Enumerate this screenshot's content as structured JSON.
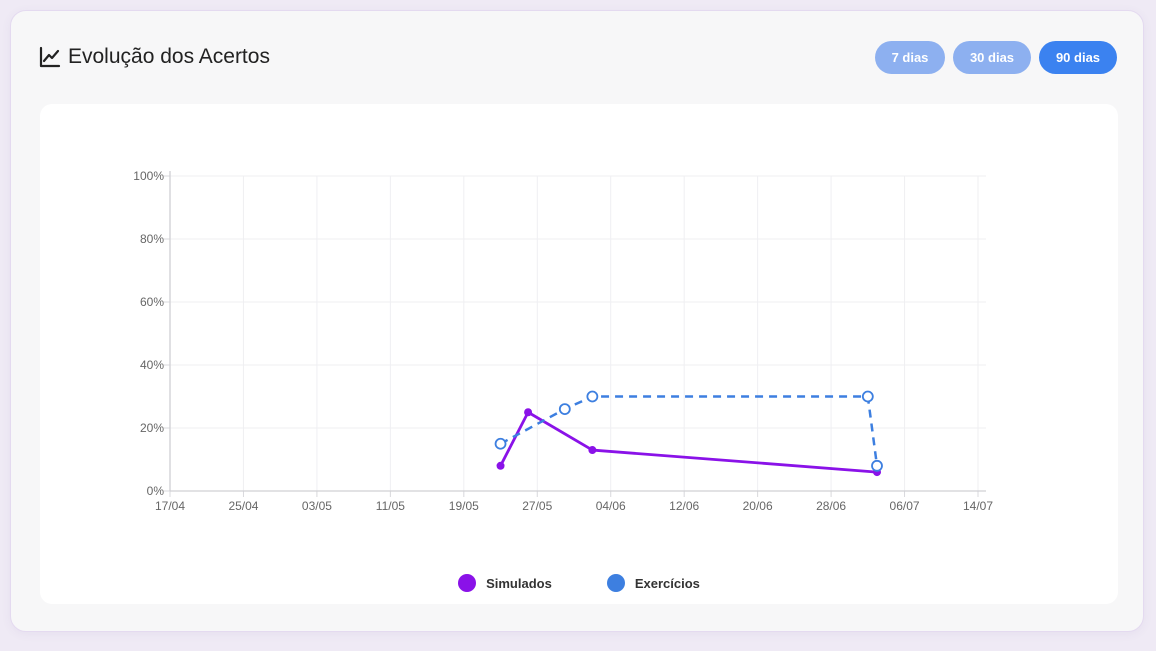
{
  "header": {
    "title": "Evolução dos Acertos",
    "icon": "line-chart-icon"
  },
  "periods": [
    {
      "label": "7 dias",
      "active": false
    },
    {
      "label": "30 dias",
      "active": false
    },
    {
      "label": "90 dias",
      "active": true
    }
  ],
  "colors": {
    "simulados": "#8a12e8",
    "exercicios": "#3d7fe0",
    "active_button": "#3b82f0",
    "inactive_button": "#8db0f0"
  },
  "chart_data": {
    "type": "line",
    "title": "",
    "xlabel": "",
    "ylabel": "",
    "x_ticks": [
      "17/04",
      "25/04",
      "03/05",
      "11/05",
      "19/05",
      "27/05",
      "04/06",
      "12/06",
      "20/06",
      "28/06",
      "06/07",
      "14/07"
    ],
    "x_range": [
      "2025-04-17",
      "2025-07-14"
    ],
    "y_ticks": [
      "0%",
      "20%",
      "40%",
      "60%",
      "80%",
      "100%"
    ],
    "ylim": [
      0,
      100
    ],
    "grid": true,
    "legend_position": "bottom-center",
    "series": [
      {
        "name": "Simulados",
        "style": "solid",
        "points": [
          {
            "x": "2025-05-23",
            "y": 8
          },
          {
            "x": "2025-05-26",
            "y": 25
          },
          {
            "x": "2025-06-02",
            "y": 13
          },
          {
            "x": "2025-07-03",
            "y": 6
          }
        ]
      },
      {
        "name": "Exercícios",
        "style": "dashed",
        "points": [
          {
            "x": "2025-05-23",
            "y": 15
          },
          {
            "x": "2025-05-30",
            "y": 26
          },
          {
            "x": "2025-06-02",
            "y": 30
          },
          {
            "x": "2025-07-02",
            "y": 30
          },
          {
            "x": "2025-07-03",
            "y": 8
          }
        ]
      }
    ]
  }
}
